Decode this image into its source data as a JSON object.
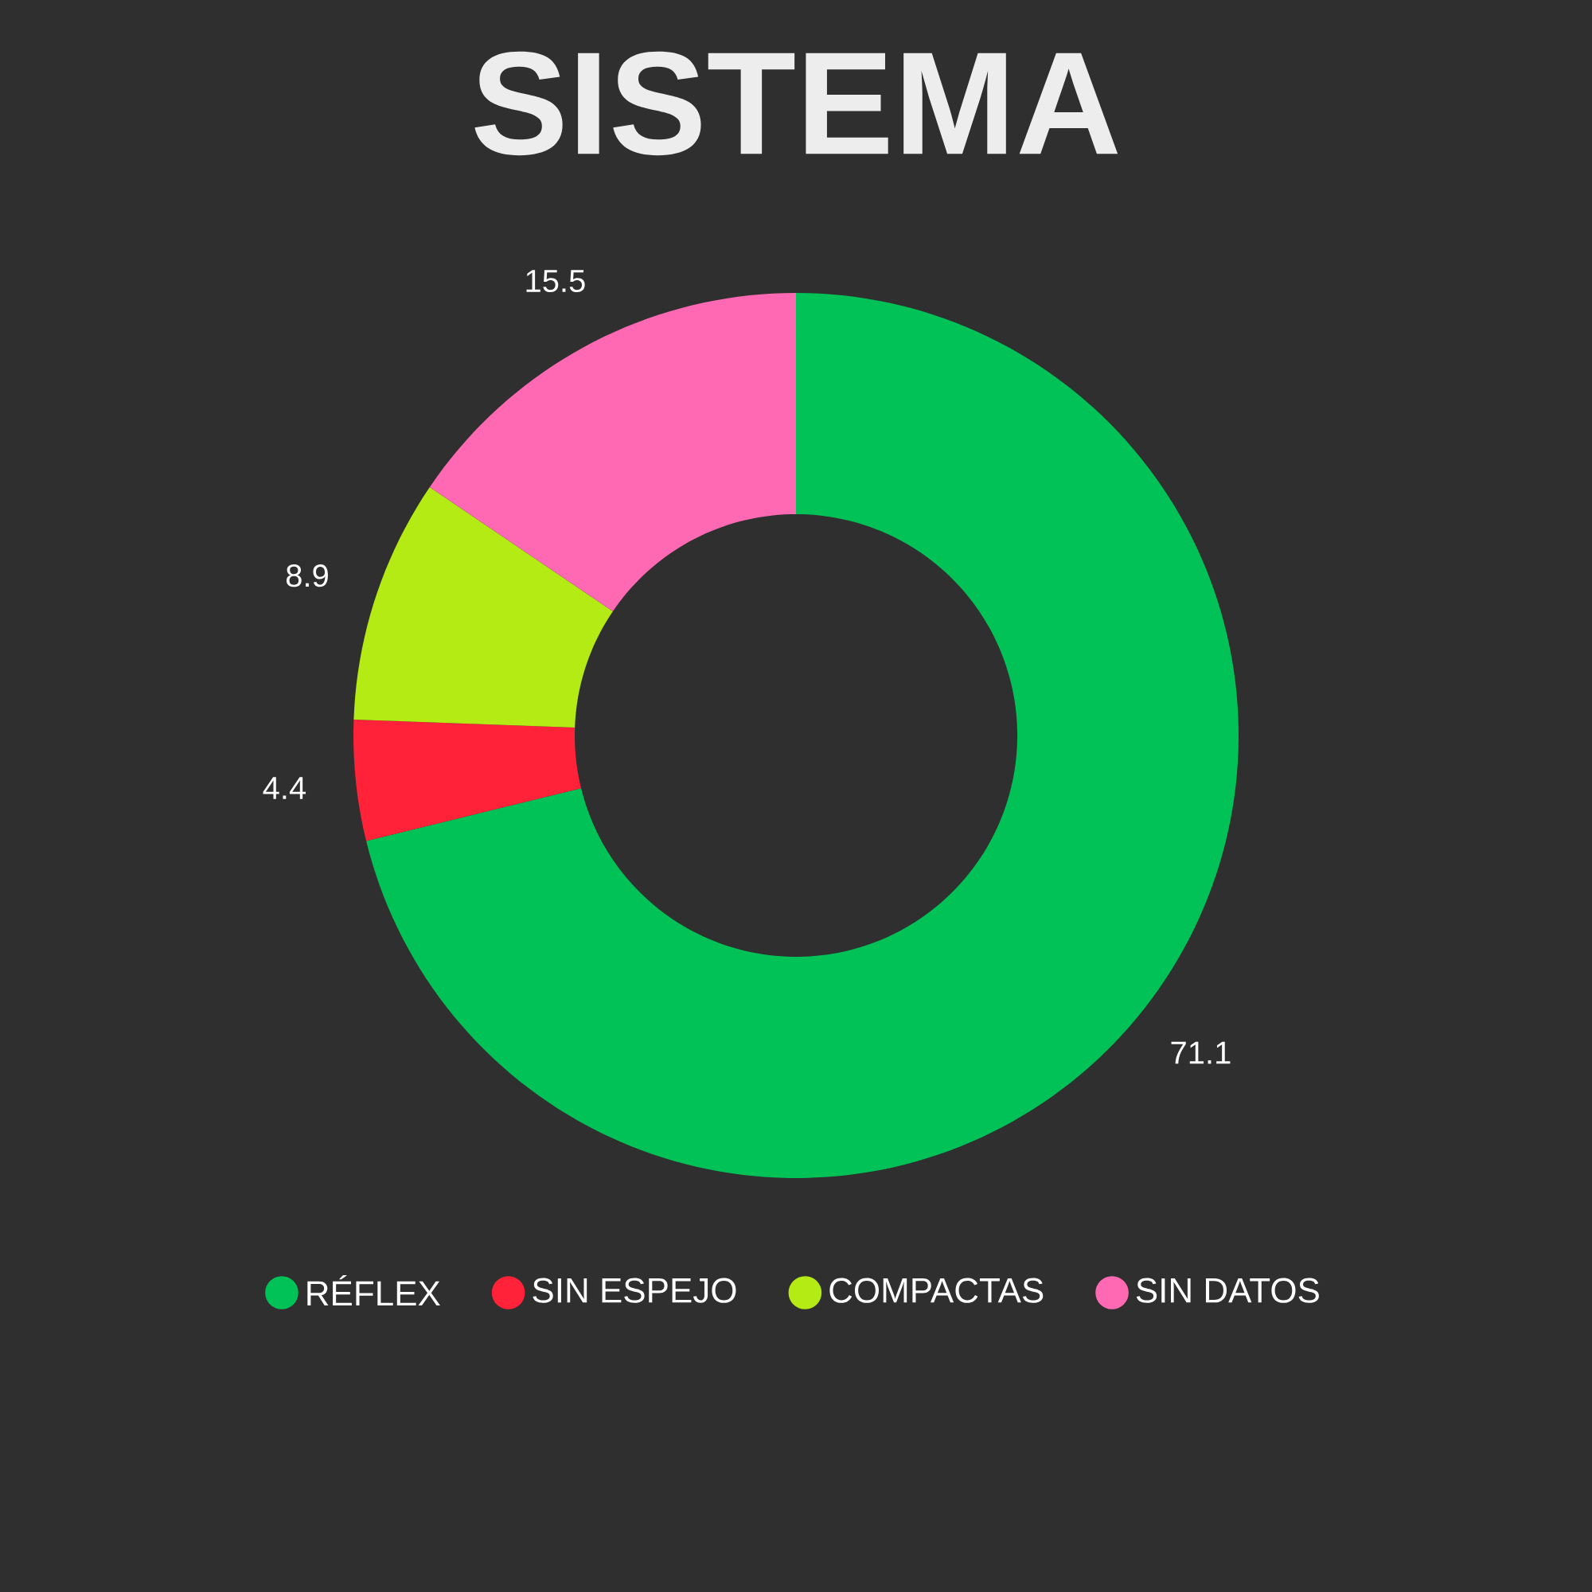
{
  "chart_data": {
    "type": "donut",
    "title": "SISTEMA",
    "categories": [
      "RÉFLEX",
      "SIN ESPEJO",
      "COMPACTAS",
      "SIN DATOS"
    ],
    "values": [
      71.1,
      4.4,
      8.9,
      15.5
    ],
    "colors": [
      "#00c257",
      "#ff2238",
      "#b5eb14",
      "#ff69b4"
    ],
    "data_labels": true,
    "legend": "bottom"
  }
}
